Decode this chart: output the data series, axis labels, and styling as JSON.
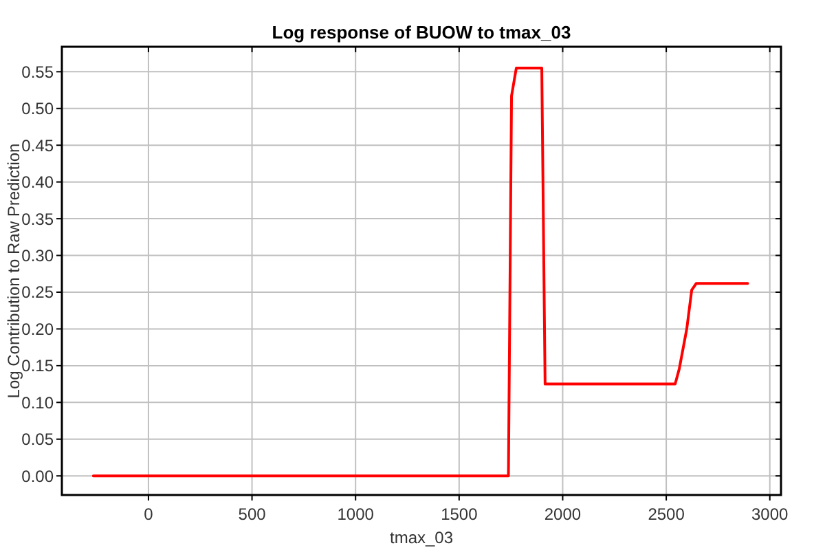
{
  "chart_data": {
    "type": "line",
    "title": "Log response of BUOW to tmax_03",
    "xlabel": "tmax_03",
    "ylabel": "Log Contribution to Raw Prediction",
    "x": [
      -266,
      1738,
      1753,
      1776,
      1899,
      1915,
      2543,
      2563,
      2599,
      2623,
      2645,
      2893
    ],
    "series": [
      {
        "color": "#ff0000",
        "values": [
          0,
          0,
          0.517,
          0.555,
          0.555,
          0.125,
          0.125,
          0.146,
          0.2,
          0.253,
          0.262,
          0.262
        ]
      }
    ],
    "xlim": [
      -418,
      3054
    ],
    "ylim": [
      -0.026,
      0.584
    ],
    "xticks": [
      0,
      500,
      1000,
      1500,
      2000,
      2500,
      3000
    ],
    "yticks": [
      {
        "value": 0,
        "label": "0.00"
      },
      0.05,
      {
        "value": 0.1,
        "label": "0.10"
      },
      0.15,
      {
        "value": 0.2,
        "label": "0.20"
      },
      0.25,
      {
        "value": 0.3,
        "label": "0.30"
      },
      0.35,
      {
        "value": 0.4,
        "label": "0.40"
      },
      0.45,
      {
        "value": 0.5,
        "label": "0.50"
      },
      0.55
    ],
    "grid": true,
    "line_style": "solid"
  }
}
